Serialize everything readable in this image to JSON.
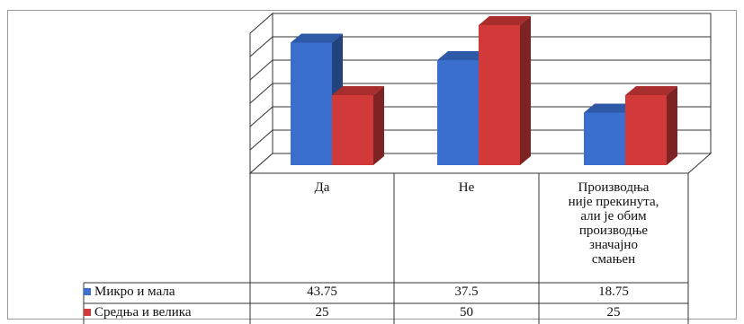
{
  "chart_data": {
    "type": "bar",
    "categories": [
      "Да",
      "Не",
      "Производња\nније прекинута,\nали је обим\nпроизводње\nзначајно\nсмањен"
    ],
    "series": [
      {
        "name": "Микро и мала",
        "values": [
          43.75,
          37.5,
          18.75
        ],
        "color": "#3a6fcf"
      },
      {
        "name": "Средња и велика",
        "values": [
          25,
          50,
          25
        ],
        "color": "#d23a3a"
      }
    ],
    "table_values": [
      [
        "43.75",
        "37.5",
        "18.75"
      ],
      [
        "25",
        "50",
        "25"
      ]
    ],
    "ylim": [
      0,
      50
    ],
    "grid": true,
    "style": "3d-clustered-column-with-data-table"
  }
}
